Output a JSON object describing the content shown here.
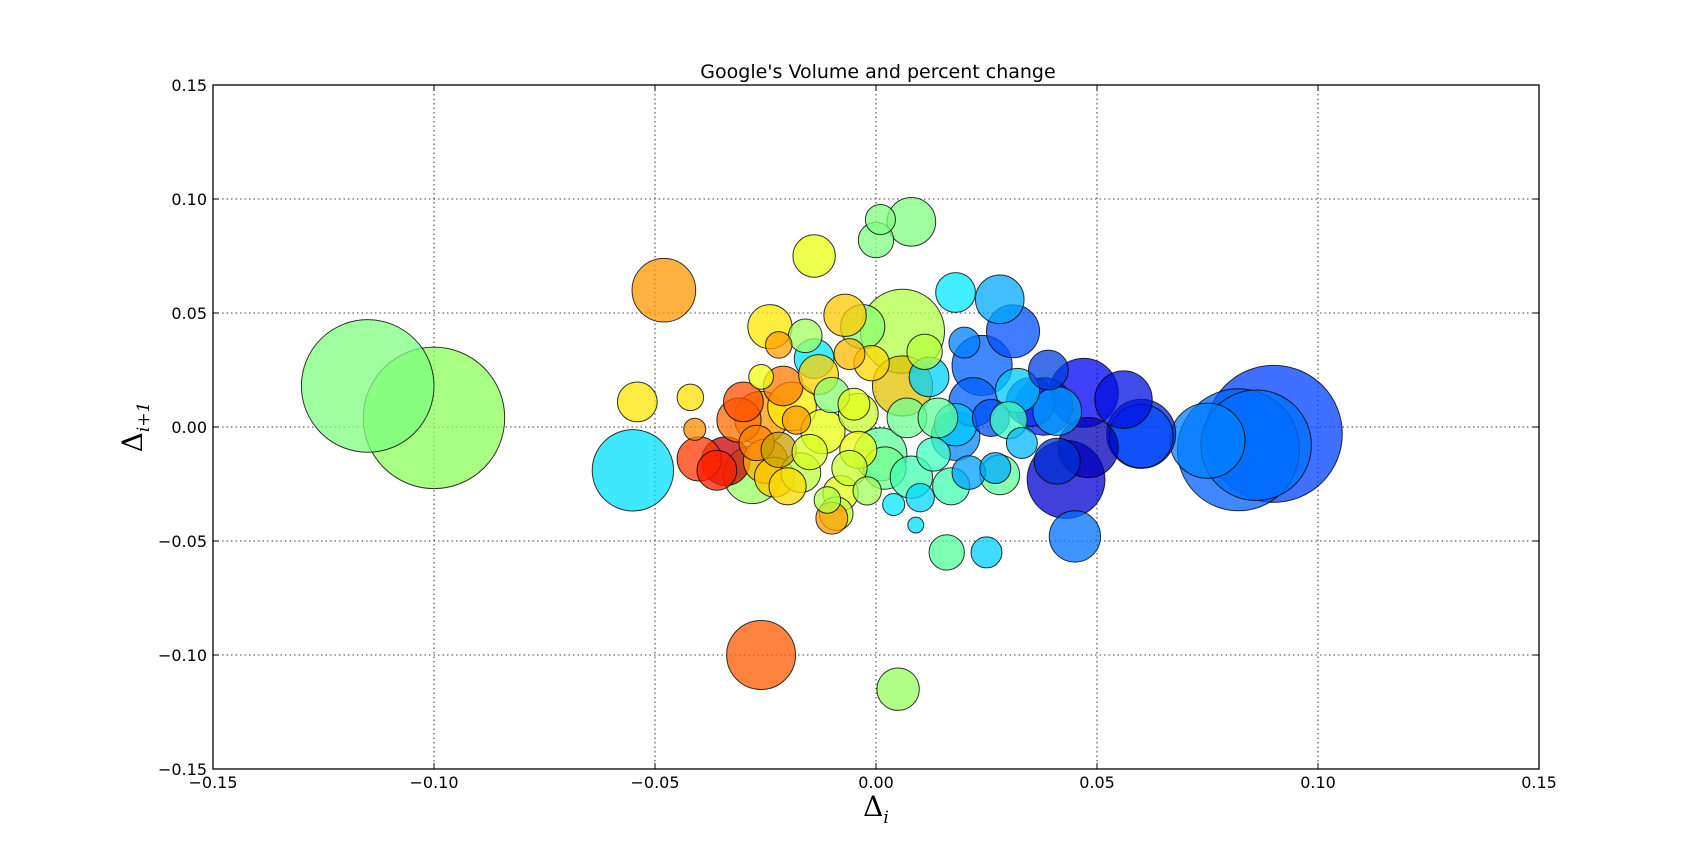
{
  "chart_data": {
    "type": "scatter",
    "title": "Google's Volume and percent change",
    "xlabel": {
      "symbol": "Δ",
      "subscript": "i"
    },
    "ylabel": {
      "symbol": "Δ",
      "subscript": "i+1"
    },
    "xlim": [
      -0.15,
      0.15
    ],
    "ylim": [
      -0.15,
      0.15
    ],
    "xticks": [
      {
        "value": -0.15,
        "label": "−0.15"
      },
      {
        "value": -0.1,
        "label": "−0.10"
      },
      {
        "value": -0.05,
        "label": "−0.05"
      },
      {
        "value": 0.0,
        "label": "0.00"
      },
      {
        "value": 0.05,
        "label": "0.05"
      },
      {
        "value": 0.1,
        "label": "0.10"
      },
      {
        "value": 0.15,
        "label": "0.15"
      }
    ],
    "yticks": [
      {
        "value": -0.15,
        "label": "−0.15"
      },
      {
        "value": -0.1,
        "label": "−0.10"
      },
      {
        "value": -0.05,
        "label": "−0.05"
      },
      {
        "value": 0.0,
        "label": "0.00"
      },
      {
        "value": 0.05,
        "label": "0.05"
      },
      {
        "value": 0.1,
        "label": "0.10"
      },
      {
        "value": 0.15,
        "label": "0.15"
      }
    ],
    "grid": true,
    "alpha": 0.75,
    "points": [
      {
        "x": -0.115,
        "y": 0.018,
        "size": 0.015,
        "color": "#7fff7f"
      },
      {
        "x": -0.1,
        "y": 0.004,
        "size": 0.016,
        "color": "#8cff5a"
      },
      {
        "x": -0.055,
        "y": -0.019,
        "size": 0.0092,
        "color": "#00e0ff"
      },
      {
        "x": -0.054,
        "y": 0.011,
        "size": 0.0045,
        "color": "#ffe500"
      },
      {
        "x": -0.048,
        "y": 0.06,
        "size": 0.0072,
        "color": "#ff9700"
      },
      {
        "x": -0.042,
        "y": 0.013,
        "size": 0.003,
        "color": "#ffe000"
      },
      {
        "x": -0.041,
        "y": -0.001,
        "size": 0.0025,
        "color": "#ff8c00"
      },
      {
        "x": -0.04,
        "y": -0.014,
        "size": 0.005,
        "color": "#ff3a00"
      },
      {
        "x": -0.036,
        "y": -0.019,
        "size": 0.0045,
        "color": "#ff1e00"
      },
      {
        "x": -0.034,
        "y": -0.015,
        "size": 0.0055,
        "color": "#c80000"
      },
      {
        "x": -0.031,
        "y": 0.003,
        "size": 0.005,
        "color": "#ff6e00"
      },
      {
        "x": -0.03,
        "y": 0.011,
        "size": 0.0045,
        "color": "#ff5000"
      },
      {
        "x": -0.028,
        "y": -0.021,
        "size": 0.0065,
        "color": "#98ff61"
      },
      {
        "x": -0.027,
        "y": -0.007,
        "size": 0.004,
        "color": "#ff8000"
      },
      {
        "x": -0.026,
        "y": -0.1,
        "size": 0.0078,
        "color": "#ff5a00"
      },
      {
        "x": -0.026,
        "y": 0.004,
        "size": 0.006,
        "color": "#ff9900"
      },
      {
        "x": -0.026,
        "y": 0.022,
        "size": 0.0028,
        "color": "#f0ff12"
      },
      {
        "x": -0.025,
        "y": -0.015,
        "size": 0.005,
        "color": "#ffb000"
      },
      {
        "x": -0.024,
        "y": 0.044,
        "size": 0.005,
        "color": "#ffe800"
      },
      {
        "x": -0.023,
        "y": -0.022,
        "size": 0.0045,
        "color": "#ffc800"
      },
      {
        "x": -0.022,
        "y": 0.036,
        "size": 0.003,
        "color": "#ffa000"
      },
      {
        "x": -0.022,
        "y": -0.01,
        "size": 0.004,
        "color": "#c8a000"
      },
      {
        "x": -0.021,
        "y": 0.018,
        "size": 0.0045,
        "color": "#ff7a00"
      },
      {
        "x": -0.02,
        "y": -0.026,
        "size": 0.0042,
        "color": "#ffd800"
      },
      {
        "x": -0.019,
        "y": 0.009,
        "size": 0.0055,
        "color": "#ffee00"
      },
      {
        "x": -0.018,
        "y": 0.003,
        "size": 0.0032,
        "color": "#ff9a00"
      },
      {
        "x": -0.017,
        "y": -0.02,
        "size": 0.0045,
        "color": "#b8ff40"
      },
      {
        "x": -0.016,
        "y": 0.04,
        "size": 0.0038,
        "color": "#a0ff60"
      },
      {
        "x": -0.015,
        "y": -0.011,
        "size": 0.004,
        "color": "#d8ff20"
      },
      {
        "x": -0.014,
        "y": 0.075,
        "size": 0.0048,
        "color": "#e8ff10"
      },
      {
        "x": -0.014,
        "y": 0.03,
        "size": 0.0045,
        "color": "#00e8ff"
      },
      {
        "x": -0.013,
        "y": 0.023,
        "size": 0.0045,
        "color": "#ffd000"
      },
      {
        "x": -0.012,
        "y": -0.002,
        "size": 0.005,
        "color": "#e8ff10"
      },
      {
        "x": -0.011,
        "y": -0.032,
        "size": 0.003,
        "color": "#b0ff48"
      },
      {
        "x": -0.01,
        "y": 0.014,
        "size": 0.004,
        "color": "#88ff70"
      },
      {
        "x": -0.01,
        "y": -0.04,
        "size": 0.0036,
        "color": "#ff9a00"
      },
      {
        "x": -0.009,
        "y": -0.038,
        "size": 0.0038,
        "color": "#c0ff38"
      },
      {
        "x": -0.008,
        "y": -0.029,
        "size": 0.004,
        "color": "#e0ff18"
      },
      {
        "x": -0.007,
        "y": 0.049,
        "size": 0.0048,
        "color": "#ffc800"
      },
      {
        "x": -0.006,
        "y": 0.032,
        "size": 0.0035,
        "color": "#ffb800"
      },
      {
        "x": -0.006,
        "y": -0.018,
        "size": 0.004,
        "color": "#c8ff30"
      },
      {
        "x": -0.005,
        "y": 0.01,
        "size": 0.0036,
        "color": "#e0ff18"
      },
      {
        "x": -0.004,
        "y": -0.01,
        "size": 0.0042,
        "color": "#f0ff10"
      },
      {
        "x": -0.003,
        "y": 0.044,
        "size": 0.005,
        "color": "#8cff70"
      },
      {
        "x": -0.002,
        "y": -0.028,
        "size": 0.0032,
        "color": "#a0ff58"
      },
      {
        "x": -0.004,
        "y": 0.006,
        "size": 0.0045,
        "color": "#c8ff30"
      },
      {
        "x": -0.001,
        "y": 0.028,
        "size": 0.004,
        "color": "#ffd800"
      },
      {
        "x": 0.0,
        "y": 0.082,
        "size": 0.004,
        "color": "#80ff80"
      },
      {
        "x": 0.001,
        "y": 0.091,
        "size": 0.0034,
        "color": "#80ff80"
      },
      {
        "x": 0.001,
        "y": -0.012,
        "size": 0.006,
        "color": "#60ff98"
      },
      {
        "x": 0.002,
        "y": -0.018,
        "size": 0.0048,
        "color": "#70ff90"
      },
      {
        "x": 0.004,
        "y": -0.034,
        "size": 0.0025,
        "color": "#00e8ff"
      },
      {
        "x": 0.005,
        "y": -0.115,
        "size": 0.0048,
        "color": "#98ff60"
      },
      {
        "x": 0.006,
        "y": 0.042,
        "size": 0.0095,
        "color": "#b0ff48"
      },
      {
        "x": 0.006,
        "y": 0.018,
        "size": 0.0068,
        "color": "#e0c000"
      },
      {
        "x": 0.007,
        "y": 0.004,
        "size": 0.0045,
        "color": "#70ff90"
      },
      {
        "x": 0.008,
        "y": 0.09,
        "size": 0.0055,
        "color": "#7fff7f"
      },
      {
        "x": 0.008,
        "y": -0.022,
        "size": 0.0048,
        "color": "#40ffb0"
      },
      {
        "x": 0.009,
        "y": -0.043,
        "size": 0.0018,
        "color": "#00e0ff"
      },
      {
        "x": 0.01,
        "y": -0.031,
        "size": 0.0032,
        "color": "#00d8ff"
      },
      {
        "x": 0.011,
        "y": 0.033,
        "size": 0.004,
        "color": "#b8ff40"
      },
      {
        "x": 0.012,
        "y": 0.022,
        "size": 0.0045,
        "color": "#00d0ff"
      },
      {
        "x": 0.013,
        "y": -0.012,
        "size": 0.0038,
        "color": "#40ffc0"
      },
      {
        "x": 0.014,
        "y": 0.004,
        "size": 0.0045,
        "color": "#60ff98"
      },
      {
        "x": 0.016,
        "y": -0.055,
        "size": 0.004,
        "color": "#50ff98"
      },
      {
        "x": 0.017,
        "y": -0.026,
        "size": 0.0042,
        "color": "#40ffb0"
      },
      {
        "x": 0.018,
        "y": 0.059,
        "size": 0.0045,
        "color": "#00e8ff"
      },
      {
        "x": 0.018,
        "y": -0.004,
        "size": 0.0055,
        "color": "#0088ff"
      },
      {
        "x": 0.018,
        "y": 0.001,
        "size": 0.0048,
        "color": "#00c8ff"
      },
      {
        "x": 0.02,
        "y": 0.037,
        "size": 0.0035,
        "color": "#0080ff"
      },
      {
        "x": 0.021,
        "y": -0.02,
        "size": 0.0038,
        "color": "#00a0ff"
      },
      {
        "x": 0.022,
        "y": 0.011,
        "size": 0.0055,
        "color": "#0060ff"
      },
      {
        "x": 0.024,
        "y": 0.027,
        "size": 0.0068,
        "color": "#0060ff"
      },
      {
        "x": 0.025,
        "y": -0.055,
        "size": 0.0035,
        "color": "#00d0ff"
      },
      {
        "x": 0.026,
        "y": 0.004,
        "size": 0.0042,
        "color": "#0050ff"
      },
      {
        "x": 0.027,
        "y": -0.018,
        "size": 0.0035,
        "color": "#00a8ff"
      },
      {
        "x": 0.028,
        "y": -0.021,
        "size": 0.0045,
        "color": "#60ff98"
      },
      {
        "x": 0.028,
        "y": 0.056,
        "size": 0.0055,
        "color": "#00a8ff"
      },
      {
        "x": 0.03,
        "y": 0.003,
        "size": 0.0042,
        "color": "#40ffc0"
      },
      {
        "x": 0.031,
        "y": 0.042,
        "size": 0.006,
        "color": "#0050ff"
      },
      {
        "x": 0.032,
        "y": 0.016,
        "size": 0.005,
        "color": "#00c8ff"
      },
      {
        "x": 0.033,
        "y": -0.007,
        "size": 0.0035,
        "color": "#00b8ff"
      },
      {
        "x": 0.035,
        "y": 0.011,
        "size": 0.0055,
        "color": "#0030ff"
      },
      {
        "x": 0.038,
        "y": 0.009,
        "size": 0.0065,
        "color": "#0020f0"
      },
      {
        "x": 0.039,
        "y": 0.025,
        "size": 0.0045,
        "color": "#0040e0"
      },
      {
        "x": 0.041,
        "y": -0.015,
        "size": 0.0052,
        "color": "#0030d0"
      },
      {
        "x": 0.041,
        "y": 0.007,
        "size": 0.0055,
        "color": "#00a0ff"
      },
      {
        "x": 0.043,
        "y": -0.023,
        "size": 0.0088,
        "color": "#0000d0"
      },
      {
        "x": 0.045,
        "y": -0.048,
        "size": 0.0058,
        "color": "#0070ff"
      },
      {
        "x": 0.047,
        "y": 0.015,
        "size": 0.0078,
        "color": "#0000f0"
      },
      {
        "x": 0.048,
        "y": -0.009,
        "size": 0.0068,
        "color": "#0000b8"
      },
      {
        "x": 0.056,
        "y": 0.012,
        "size": 0.0065,
        "color": "#0010e0"
      },
      {
        "x": 0.06,
        "y": -0.003,
        "size": 0.0078,
        "color": "#0020d8"
      },
      {
        "x": 0.06,
        "y": -0.004,
        "size": 0.0072,
        "color": "#0050ff"
      },
      {
        "x": 0.075,
        "y": -0.006,
        "size": 0.0085,
        "color": "#0080ff"
      },
      {
        "x": 0.082,
        "y": -0.01,
        "size": 0.0138,
        "color": "#0060ff"
      },
      {
        "x": 0.086,
        "y": -0.008,
        "size": 0.0125,
        "color": "#0070ff"
      },
      {
        "x": 0.09,
        "y": -0.003,
        "size": 0.0155,
        "color": "#0040ff"
      }
    ]
  }
}
